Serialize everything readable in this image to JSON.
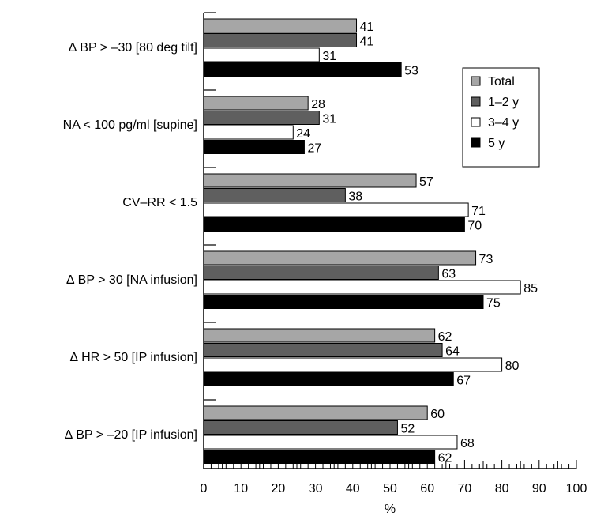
{
  "chart_data": {
    "type": "bar",
    "orientation": "horizontal",
    "categories": [
      "∆ BP > –30 [80 deg tilt]",
      "NA < 100 pg/ml [supine]",
      "CV–RR < 1.5",
      "∆ BP > 30 [NA infusion]",
      "∆ HR > 50 [IP infusion]",
      "∆ BP > –20 [IP infusion]"
    ],
    "series": [
      {
        "name": "Total",
        "color": "#a6a6a6",
        "values": [
          41,
          28,
          57,
          73,
          62,
          60
        ]
      },
      {
        "name": "1–2 y",
        "color": "#5f5f5f",
        "values": [
          41,
          31,
          38,
          63,
          64,
          52
        ]
      },
      {
        "name": "3–4 y",
        "color": "#ffffff",
        "values": [
          31,
          24,
          71,
          85,
          80,
          68
        ]
      },
      {
        "name": "5 y",
        "color": "#000000",
        "values": [
          53,
          27,
          70,
          75,
          67,
          62
        ]
      }
    ],
    "xlabel": "%",
    "xlim": [
      0,
      100
    ],
    "xticks": [
      0,
      10,
      20,
      30,
      40,
      50,
      60,
      70,
      80,
      90,
      100
    ],
    "grid": false,
    "legend_position": "top-right",
    "data_labels": true
  }
}
